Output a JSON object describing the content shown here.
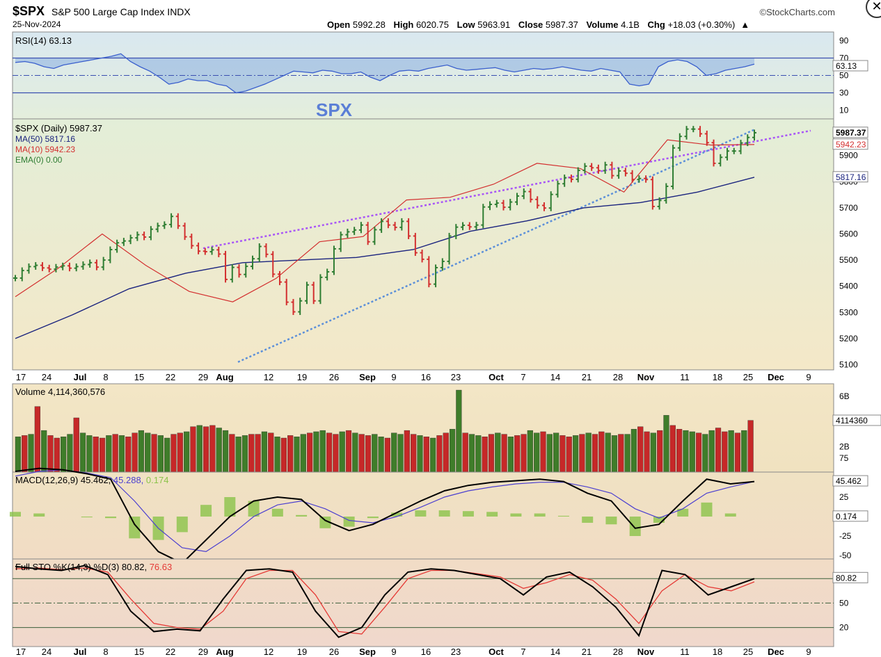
{
  "header": {
    "ticker": "$SPX",
    "name": "S&P 500 Large Cap Index INDX",
    "date": "25-Nov-2024",
    "brand": "©StockCharts.com",
    "ohlc": {
      "open_label": "Open",
      "open": "5992.28",
      "high_label": "High",
      "high": "6020.75",
      "low_label": "Low",
      "low": "5963.91",
      "close_label": "Close",
      "close": "5987.37",
      "volume_label": "Volume",
      "volume": "4.1B",
      "chg_label": "Chg",
      "chg": "+18.03 (+0.30%)",
      "chg_arrow": "▲"
    },
    "close_icon": "close-icon"
  },
  "annotation": "SPX",
  "colors": {
    "up": "#2e7d32",
    "down": "#d32f2f",
    "ma50": "#1a237e",
    "ma10": "#d32f2f",
    "upper_trend": "#a855f7",
    "lower_trend": "#5b8fd9",
    "rsi": "#3a5fcd",
    "rsi_fill": "#7aa5e0",
    "macd": "#000000",
    "macd_signal": "#4b3fd0",
    "macd_hist": "#8bc34a",
    "sto_k": "#000000",
    "sto_d": "#e53935"
  },
  "chart_data": [
    {
      "type": "line",
      "panel": "rsi",
      "legend": "RSI(14) 63.13",
      "ylim": [
        0,
        100
      ],
      "y_ticks": [
        "90",
        "70",
        "50",
        "30",
        "10"
      ],
      "levels": [
        70,
        30
      ],
      "last_value": "63.13",
      "series": [
        {
          "values": [
            65,
            66,
            64,
            60,
            58,
            62,
            64,
            66,
            68,
            70,
            72,
            75,
            66,
            60,
            55,
            48,
            40,
            42,
            46,
            44,
            44,
            40,
            38,
            30,
            32,
            36,
            40,
            45,
            50,
            55,
            54,
            53,
            56,
            55,
            52,
            52,
            54,
            48,
            44,
            50,
            55,
            56,
            55,
            58,
            60,
            62,
            58,
            56,
            57,
            58,
            59,
            56,
            54,
            56,
            58,
            57,
            58,
            60,
            58,
            56,
            55,
            58,
            56,
            54,
            40,
            38,
            40,
            60,
            66,
            68,
            66,
            60,
            50,
            52,
            56,
            58,
            60,
            63
          ]
        }
      ]
    },
    {
      "type": "ohlc",
      "panel": "price",
      "legend": "$SPX (Daily) 5987.37",
      "ylim": [
        5080,
        6040
      ],
      "y_ticks": [
        5100,
        5200,
        5300,
        5400,
        5500,
        5600,
        5700,
        5800,
        5900
      ],
      "x_ticks": [
        "17",
        "24",
        "Jul",
        "8",
        "15",
        "22",
        "29",
        "Aug",
        "12",
        "19",
        "26",
        "Sep",
        "9",
        "16",
        "23",
        "Oct",
        "7",
        "14",
        "21",
        "28",
        "Nov",
        "11",
        "18",
        "25",
        "Dec",
        "9"
      ],
      "price_labels": [
        "5987.37",
        "5942.23",
        "5817.16"
      ],
      "series": [
        {
          "name": "$SPX (Daily) 5987.37",
          "values": [
            5431,
            5460,
            5475,
            5480,
            5470,
            5465,
            5473,
            5478,
            5469,
            5475,
            5483,
            5490,
            5473,
            5500,
            5540,
            5566,
            5573,
            5585,
            5597,
            5588,
            5618,
            5631,
            5636,
            5667,
            5631,
            5589,
            5555,
            5534,
            5532,
            5539,
            5523,
            5426,
            5472,
            5445,
            5476,
            5505,
            5552,
            5522,
            5446,
            5416,
            5339,
            5302,
            5344,
            5405,
            5344,
            5434,
            5455,
            5543,
            5597,
            5608,
            5615,
            5634,
            5570,
            5616,
            5648,
            5634,
            5625,
            5648,
            5592,
            5528,
            5503,
            5408,
            5471,
            5495,
            5592,
            5626,
            5633,
            5627,
            5634,
            5703,
            5713,
            5718,
            5702,
            5722,
            5745,
            5762,
            5732,
            5709,
            5699,
            5751,
            5792,
            5815,
            5809,
            5843,
            5859,
            5853,
            5842,
            5864,
            5823,
            5841,
            5832,
            5808,
            5812,
            5808,
            5705,
            5728,
            5782,
            5929,
            5973,
            6001,
            6001,
            5983,
            5949,
            5870,
            5893,
            5917,
            5917,
            5948,
            5969,
            5987
          ]
        },
        {
          "name": "MA(50) 5817.16",
          "values": [
            5200,
            5290,
            5390,
            5450,
            5490,
            5500,
            5510,
            5540,
            5610,
            5650,
            5700,
            5720,
            5760,
            5817
          ]
        },
        {
          "name": "MA(10) 5942.23",
          "values": [
            5360,
            5470,
            5600,
            5480,
            5380,
            5340,
            5430,
            5570,
            5590,
            5730,
            5740,
            5790,
            5870,
            5850,
            5760,
            5960,
            5940,
            5942
          ]
        },
        {
          "name": "EMA(0) 0.00",
          "values": []
        }
      ]
    },
    {
      "type": "bar",
      "panel": "volume",
      "legend": "Volume 4,114,360,576",
      "y_ticks": [
        "6B",
        "2B"
      ],
      "last_value": "4114360",
      "values": [
        2.8,
        2.9,
        3.0,
        5.2,
        3.3,
        2.9,
        2.7,
        2.8,
        3.0,
        4.3,
        3.1,
        2.9,
        2.8,
        2.7,
        2.9,
        3.0,
        2.9,
        2.8,
        3.1,
        3.3,
        3.1,
        3.0,
        2.9,
        2.7,
        3.0,
        3.1,
        3.2,
        3.6,
        3.7,
        3.6,
        3.7,
        3.5,
        3.3,
        3.0,
        2.8,
        2.9,
        3.0,
        3.0,
        3.2,
        3.1,
        2.8,
        2.7,
        2.9,
        2.8,
        3.0,
        3.1,
        3.2,
        3.3,
        3.1,
        3.0,
        3.2,
        3.3,
        3.1,
        3.0,
        2.9,
        3.0,
        2.8,
        2.7,
        3.1,
        3.0,
        3.3,
        3.0,
        2.9,
        2.8,
        2.7,
        2.9,
        3.1,
        3.4,
        6.5,
        3.1,
        3.0,
        2.9,
        2.8,
        3.0,
        3.1,
        3.0,
        2.8,
        2.9,
        3.0,
        3.3,
        3.1,
        3.2,
        3.0,
        3.1,
        2.9,
        2.8,
        2.9,
        3.0,
        3.1,
        3.0,
        3.2,
        3.1,
        2.9,
        3.0,
        3.0,
        3.4,
        3.6,
        3.2,
        3.1,
        3.3,
        4.5,
        3.7,
        3.4,
        3.3,
        3.2,
        3.1,
        3.0,
        3.3,
        3.5,
        3.2,
        3.3,
        3.1,
        3.3,
        4.1
      ]
    },
    {
      "type": "line",
      "panel": "macd",
      "legend_main": "MACD(12,26,9) 45.462,",
      "legend_signal": "45.288,",
      "legend_hist": "0.174",
      "y_ticks": [
        "75",
        "25",
        "-25",
        "-50"
      ],
      "price_labels": [
        "45.462",
        "0.174"
      ],
      "series": [
        {
          "name": "MACD(12,26,9) 45.462",
          "values": [
            58,
            62,
            60,
            55,
            48,
            -10,
            -45,
            -60,
            -30,
            0,
            20,
            25,
            22,
            -5,
            -18,
            -10,
            5,
            20,
            33,
            40,
            44,
            46,
            48,
            45,
            30,
            20,
            -15,
            -10,
            20,
            48,
            42,
            45
          ]
        },
        {
          "name": "45.288",
          "values": [
            52,
            58,
            60,
            56,
            50,
            20,
            -15,
            -40,
            -45,
            -25,
            0,
            15,
            20,
            10,
            -5,
            -8,
            0,
            12,
            25,
            33,
            38,
            42,
            44,
            44,
            38,
            30,
            10,
            -2,
            10,
            30,
            38,
            45
          ]
        },
        {
          "name": "0.174",
          "values": [
            6,
            4,
            0,
            -1,
            -2,
            -28,
            -30,
            -20,
            15,
            25,
            20,
            10,
            2,
            -15,
            -13,
            -2,
            5,
            8,
            8,
            7,
            6,
            4,
            4,
            1,
            -8,
            -10,
            -25,
            -8,
            10,
            18,
            4,
            0
          ]
        }
      ]
    },
    {
      "type": "line",
      "panel": "sto",
      "legend_main": "Full STO %K(14,3) %D(3) 80.82,",
      "legend_d": "76.63",
      "y_ticks": [
        "80",
        "50",
        "20"
      ],
      "levels": [
        80,
        50,
        20
      ],
      "price_labels": [
        "80.82"
      ],
      "series": [
        {
          "name": "%K(14,3)",
          "values": [
            95,
            92,
            90,
            96,
            85,
            40,
            15,
            18,
            16,
            55,
            90,
            92,
            88,
            40,
            8,
            20,
            60,
            88,
            92,
            90,
            85,
            80,
            60,
            82,
            88,
            70,
            45,
            10,
            90,
            85,
            60,
            70,
            80
          ]
        },
        {
          "name": "%D(3) 76.63",
          "values": [
            92,
            93,
            91,
            93,
            88,
            55,
            25,
            20,
            18,
            40,
            80,
            90,
            90,
            60,
            15,
            12,
            45,
            80,
            90,
            90,
            86,
            82,
            68,
            75,
            85,
            78,
            55,
            25,
            65,
            85,
            70,
            65,
            76
          ]
        }
      ]
    }
  ],
  "rsi_bands": {
    "upper_label": "70",
    "lower_label": "30"
  }
}
